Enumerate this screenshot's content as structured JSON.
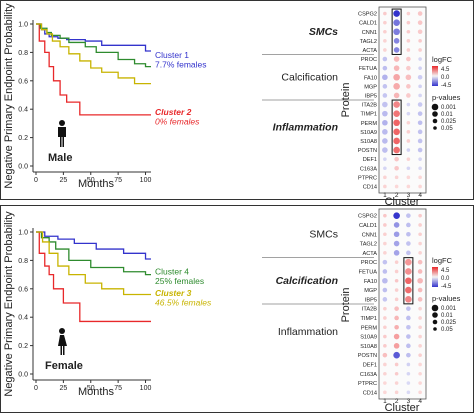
{
  "panels": [
    {
      "sex_label": "Male",
      "km": {
        "ylabel": "Negative Primary Endpoint Probability",
        "xlabel": "Months",
        "xticks": [
          0,
          25,
          50,
          75,
          100
        ],
        "yticks": [
          "0.0",
          "0.2",
          "0.4",
          "0.6",
          "0.8",
          "1.0"
        ],
        "annotations": [
          {
            "lines": [
              "Cluster 1",
              "7.7% females"
            ],
            "color": "#3333cc",
            "style": "normal",
            "y": 0.76
          },
          {
            "lines": [
              "Cluster 2",
              "0% females"
            ],
            "color": "#e8282a",
            "style": "italic",
            "y": 0.36
          }
        ]
      },
      "dot": {
        "groups": [
          {
            "label": "SMCs",
            "style": "italic-bold"
          },
          {
            "label": "Calcification",
            "style": "normal"
          },
          {
            "label": "Inflammation",
            "style": "italic-bold"
          }
        ],
        "proteins": [
          "CSPG2",
          "CALD1",
          "CNN1",
          "TAGL2",
          "ACTA",
          "PROC",
          "FETUA",
          "FA10",
          "MGP",
          "IBP5",
          "ITA2B",
          "TIMP1",
          "PERM",
          "S10A9",
          "S10A8",
          "POSTN",
          "DEF1",
          "C163A",
          "PTPRC",
          "CD14"
        ],
        "clusters": [
          "1",
          "2",
          "3",
          "4"
        ],
        "xlabel": "Cluster",
        "ylabel": "Protein",
        "box": {
          "col": "2",
          "from": "CSPG2",
          "to": "ACTA",
          "col2": "2",
          "from2": "ITA2B",
          "to2": "POSTN"
        }
      }
    },
    {
      "sex_label": "Female",
      "km": {
        "ylabel": "Negative Primary Endpoint Probability",
        "xlabel": "Months",
        "xticks": [
          0,
          25,
          50,
          75,
          100
        ],
        "yticks": [
          "0.0",
          "0.2",
          "0.4",
          "0.6",
          "0.8",
          "1.0"
        ],
        "annotations": [
          {
            "lines": [
              "Cluster 4",
              "25% females"
            ],
            "color": "#2e8b2e",
            "style": "normal",
            "y": 0.7
          },
          {
            "lines": [
              "Cluster 3",
              "46.5% females"
            ],
            "color": "#c8b400",
            "style": "italic",
            "y": 0.55
          }
        ]
      },
      "dot": {
        "groups": [
          {
            "label": "SMCs",
            "style": "normal"
          },
          {
            "label": "Calcification",
            "style": "italic-bold"
          },
          {
            "label": "Inflammation",
            "style": "normal"
          }
        ],
        "proteins": [
          "CSPG2",
          "CALD1",
          "CNN1",
          "TAGL2",
          "ACTA",
          "PROC",
          "FETUA",
          "FA10",
          "MGP",
          "IBP5",
          "ITA2B",
          "TIMP1",
          "PERM",
          "S10A9",
          "S10A8",
          "POSTN",
          "DEF1",
          "C163A",
          "PTPRC",
          "CD14"
        ],
        "clusters": [
          "1",
          "2",
          "3",
          "4"
        ],
        "xlabel": "Cluster",
        "ylabel": "Protein",
        "box": {
          "col": "3",
          "from": "PROC",
          "to": "IBP5"
        }
      }
    }
  ],
  "legend": {
    "logfc_title": "logFC",
    "logfc_ticks": [
      "4.5",
      "0.0",
      "-4.5"
    ],
    "pval_title": "p-values",
    "pval_ticks": [
      "0.001",
      "0.01",
      "0.025",
      "0.05"
    ]
  },
  "colors": {
    "cluster1": "#3333cc",
    "cluster2": "#e8282a",
    "cluster3": "#c8b400",
    "cluster4": "#2e8b2e",
    "pos": "#e8282a",
    "neg": "#3333cc"
  },
  "chart_data": [
    {
      "type": "line",
      "title": "",
      "xlabel": "Months",
      "ylabel": "Negative Primary Endpoint Probability",
      "xlim": [
        0,
        105
      ],
      "ylim": [
        0,
        1
      ],
      "series": [
        {
          "name": "Cluster 1",
          "color": "#3333cc",
          "x": [
            0,
            5,
            8,
            12,
            20,
            28,
            45,
            60,
            80,
            100,
            105
          ],
          "y": [
            1,
            0.96,
            0.93,
            0.91,
            0.9,
            0.89,
            0.88,
            0.85,
            0.85,
            0.81,
            0.81
          ]
        },
        {
          "name": "Cluster 2",
          "color": "#e8282a",
          "x": [
            0,
            3,
            8,
            12,
            16,
            22,
            28,
            40,
            60,
            80,
            105
          ],
          "y": [
            1,
            0.88,
            0.8,
            0.7,
            0.6,
            0.5,
            0.45,
            0.36,
            0.36,
            0.36,
            0.36
          ]
        },
        {
          "color": "#2e8b2e",
          "x": [
            0,
            4,
            10,
            14,
            22,
            30,
            45,
            55,
            75,
            90,
            100,
            105
          ],
          "y": [
            1,
            0.97,
            0.94,
            0.92,
            0.9,
            0.87,
            0.84,
            0.8,
            0.75,
            0.72,
            0.7,
            0.7
          ]
        },
        {
          "color": "#c8b400",
          "x": [
            0,
            5,
            10,
            15,
            22,
            30,
            40,
            50,
            60,
            75,
            90,
            105
          ],
          "y": [
            1,
            0.96,
            0.93,
            0.88,
            0.84,
            0.79,
            0.74,
            0.69,
            0.66,
            0.62,
            0.58,
            0.58
          ]
        }
      ]
    },
    {
      "type": "line",
      "title": "",
      "xlabel": "Months",
      "ylabel": "Negative Primary Endpoint Probability",
      "xlim": [
        0,
        105
      ],
      "ylim": [
        0,
        1
      ],
      "series": [
        {
          "color": "#3333cc",
          "x": [
            0,
            8,
            20,
            35,
            55,
            80,
            100,
            105
          ],
          "y": [
            1,
            0.97,
            0.95,
            0.92,
            0.88,
            0.85,
            0.81,
            0.81
          ]
        },
        {
          "color": "#e8282a",
          "x": [
            0,
            3,
            8,
            12,
            16,
            25,
            40,
            60,
            80,
            105
          ],
          "y": [
            1,
            0.85,
            0.76,
            0.7,
            0.6,
            0.5,
            0.37,
            0.37,
            0.37,
            0.37
          ]
        },
        {
          "name": "Cluster 4",
          "color": "#2e8b2e",
          "x": [
            0,
            5,
            12,
            18,
            30,
            50,
            80,
            100,
            105
          ],
          "y": [
            1,
            0.96,
            0.93,
            0.88,
            0.8,
            0.75,
            0.72,
            0.7,
            0.7
          ]
        },
        {
          "name": "Cluster 3",
          "color": "#c8b400",
          "x": [
            0,
            6,
            12,
            20,
            30,
            45,
            60,
            80,
            105
          ],
          "y": [
            1,
            0.93,
            0.85,
            0.76,
            0.7,
            0.64,
            0.6,
            0.56,
            0.56
          ]
        }
      ]
    },
    {
      "type": "heatmap",
      "xlabel": "Cluster",
      "ylabel": "Protein",
      "clusters": [
        "1",
        "2",
        "3",
        "4"
      ],
      "proteins": [
        "CSPG2",
        "CALD1",
        "CNN1",
        "TAGL2",
        "ACTA",
        "PROC",
        "FETUA",
        "FA10",
        "MGP",
        "IBP5",
        "ITA2B",
        "TIMP1",
        "PERM",
        "S10A9",
        "S10A8",
        "POSTN",
        "DEF1",
        "C163A",
        "PTPRC",
        "CD14"
      ],
      "logFC": [
        [
          0.5,
          -4.5,
          0.4,
          0.6
        ],
        [
          0.4,
          -2.8,
          0.5,
          0.6
        ],
        [
          0.4,
          -2.6,
          0.5,
          0.5
        ],
        [
          0.3,
          -2.4,
          0.4,
          0.5
        ],
        [
          0.3,
          -2.4,
          0.4,
          0.4
        ],
        [
          -0.8,
          0.9,
          0.6,
          -0.3
        ],
        [
          -0.9,
          1.0,
          0.5,
          -0.4
        ],
        [
          -1.2,
          1.4,
          0.8,
          -0.5
        ],
        [
          -0.8,
          1.3,
          0.6,
          -0.4
        ],
        [
          -0.7,
          1.0,
          0.5,
          -0.3
        ],
        [
          -0.8,
          2.2,
          -0.3,
          -0.6
        ],
        [
          -1.0,
          2.6,
          -0.3,
          -0.8
        ],
        [
          -1.2,
          3.0,
          0.3,
          -0.9
        ],
        [
          -1.0,
          3.0,
          0.4,
          -0.8
        ],
        [
          -1.0,
          3.0,
          0.4,
          -0.8
        ],
        [
          -0.9,
          2.8,
          -0.4,
          -0.8
        ],
        [
          -0.3,
          0.6,
          0.3,
          -0.3
        ],
        [
          -0.3,
          0.6,
          -0.3,
          -0.2
        ],
        [
          0.3,
          0.3,
          0.2,
          0.2
        ],
        [
          0.3,
          0.2,
          0.2,
          0.2
        ]
      ],
      "p": [
        [
          0.05,
          0.001,
          0.05,
          0.025
        ],
        [
          0.05,
          0.001,
          0.05,
          0.025
        ],
        [
          0.05,
          0.001,
          0.05,
          0.025
        ],
        [
          0.05,
          0.01,
          0.05,
          0.05
        ],
        [
          0.05,
          0.01,
          0.05,
          0.05
        ],
        [
          0.025,
          0.01,
          0.025,
          0.05
        ],
        [
          0.025,
          0.01,
          0.025,
          0.05
        ],
        [
          0.01,
          0.001,
          0.01,
          0.025
        ],
        [
          0.025,
          0.001,
          0.025,
          0.05
        ],
        [
          0.025,
          0.01,
          0.025,
          0.05
        ],
        [
          0.01,
          0.001,
          0.05,
          0.025
        ],
        [
          0.01,
          0.001,
          0.05,
          0.025
        ],
        [
          0.01,
          0.001,
          0.05,
          0.025
        ],
        [
          0.01,
          0.001,
          0.05,
          0.025
        ],
        [
          0.01,
          0.001,
          0.05,
          0.025
        ],
        [
          0.01,
          0.001,
          0.05,
          0.025
        ],
        [
          0.05,
          0.025,
          0.05,
          0.05
        ],
        [
          0.05,
          0.025,
          0.05,
          0.05
        ],
        [
          0.05,
          0.05,
          0.05,
          0.05
        ],
        [
          0.05,
          0.05,
          0.05,
          0.05
        ]
      ]
    },
    {
      "type": "heatmap",
      "xlabel": "Cluster",
      "ylabel": "Protein",
      "clusters": [
        "1",
        "2",
        "3",
        "4"
      ],
      "proteins": [
        "CSPG2",
        "CALD1",
        "CNN1",
        "TAGL2",
        "ACTA",
        "PROC",
        "FETUA",
        "FA10",
        "MGP",
        "IBP5",
        "ITA2B",
        "TIMP1",
        "PERM",
        "S10A9",
        "S10A8",
        "POSTN",
        "DEF1",
        "C163A",
        "PTPRC",
        "CD14"
      ],
      "logFC": [
        [
          0.6,
          -4.5,
          -0.8,
          0.5
        ],
        [
          0.5,
          -2.0,
          -0.9,
          0.4
        ],
        [
          0.4,
          -1.8,
          -0.9,
          0.4
        ],
        [
          0.3,
          -1.6,
          -0.8,
          0.3
        ],
        [
          0.3,
          -1.6,
          -0.8,
          0.3
        ],
        [
          -0.8,
          0.4,
          1.8,
          0.8
        ],
        [
          -0.9,
          0.4,
          2.0,
          0.9
        ],
        [
          -1.0,
          0.6,
          3.0,
          1.0
        ],
        [
          -0.9,
          0.4,
          2.8,
          0.9
        ],
        [
          -0.7,
          0.4,
          2.2,
          0.8
        ],
        [
          0.4,
          0.8,
          -0.8,
          0.3
        ],
        [
          0.4,
          1.0,
          -0.9,
          0.3
        ],
        [
          0.4,
          1.2,
          -0.8,
          0.3
        ],
        [
          0.5,
          1.6,
          -0.9,
          0.3
        ],
        [
          0.5,
          1.6,
          -0.9,
          0.3
        ],
        [
          0.8,
          -3.5,
          -0.9,
          0.4
        ],
        [
          0.3,
          0.5,
          -0.4,
          0.2
        ],
        [
          0.3,
          0.5,
          -0.3,
          0.2
        ],
        [
          0.2,
          0.3,
          -0.2,
          0.2
        ],
        [
          0.2,
          0.3,
          -0.2,
          0.2
        ]
      ],
      "p": [
        [
          0.05,
          0.001,
          0.025,
          0.05
        ],
        [
          0.05,
          0.01,
          0.025,
          0.05
        ],
        [
          0.05,
          0.01,
          0.025,
          0.05
        ],
        [
          0.05,
          0.01,
          0.025,
          0.05
        ],
        [
          0.05,
          0.01,
          0.025,
          0.05
        ],
        [
          0.025,
          0.05,
          0.001,
          0.025
        ],
        [
          0.025,
          0.05,
          0.001,
          0.025
        ],
        [
          0.01,
          0.05,
          0.001,
          0.01
        ],
        [
          0.025,
          0.05,
          0.001,
          0.025
        ],
        [
          0.025,
          0.05,
          0.001,
          0.025
        ],
        [
          0.05,
          0.025,
          0.025,
          0.05
        ],
        [
          0.05,
          0.025,
          0.025,
          0.05
        ],
        [
          0.05,
          0.025,
          0.025,
          0.05
        ],
        [
          0.05,
          0.01,
          0.025,
          0.05
        ],
        [
          0.05,
          0.01,
          0.025,
          0.05
        ],
        [
          0.025,
          0.001,
          0.025,
          0.05
        ],
        [
          0.05,
          0.05,
          0.05,
          0.05
        ],
        [
          0.05,
          0.05,
          0.05,
          0.05
        ],
        [
          0.05,
          0.05,
          0.05,
          0.05
        ],
        [
          0.05,
          0.05,
          0.05,
          0.05
        ]
      ]
    }
  ]
}
